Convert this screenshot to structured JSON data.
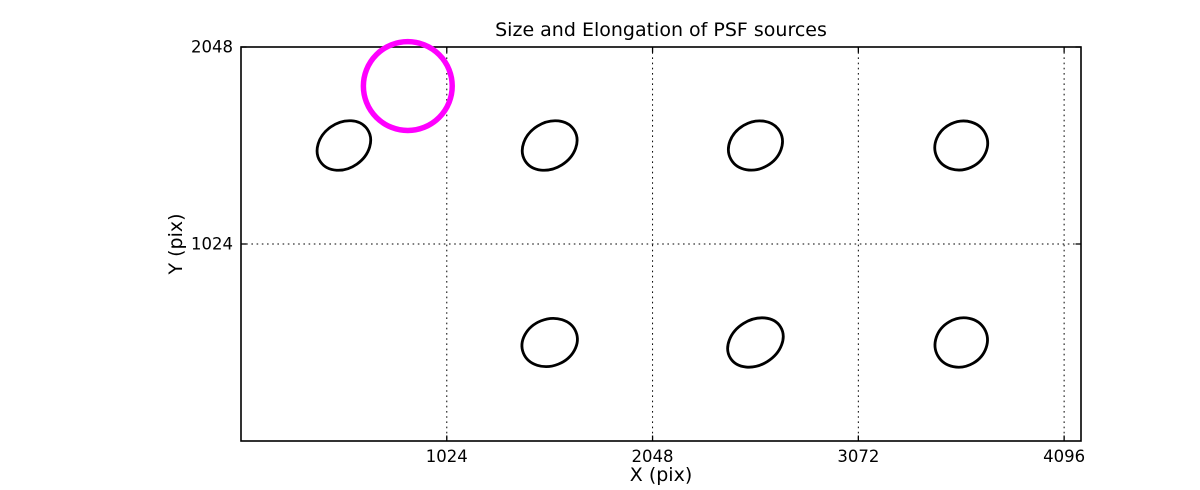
{
  "figure": {
    "title": "Size and Elongation of PSF sources",
    "background_color": "#ffffff",
    "foreground_color": "#000000"
  },
  "chart_data": {
    "type": "scatter",
    "title": "Size and Elongation of PSF sources",
    "xlabel": "X (pix)",
    "ylabel": "Y (pix)",
    "xlim": [
      0,
      4180
    ],
    "ylim": [
      0,
      2048
    ],
    "xticks": [
      1024,
      2048,
      3072,
      4096
    ],
    "yticks": [
      1024,
      2048
    ],
    "grid": {
      "enabled": true,
      "style": "dotted",
      "color": "#000000"
    },
    "legend_position": "none",
    "marker_description": "PSF sources drawn as tilted ellipses (size = PSF size, tilt = elongation); one highlighted source drawn as a thick magenta circle",
    "ellipse_color": "#000000",
    "psf_ellipses": [
      {
        "x": 512,
        "y": 1536,
        "semi_major": 142,
        "semi_minor": 113,
        "angle_deg": 35
      },
      {
        "x": 1536,
        "y": 1536,
        "semi_major": 144,
        "semi_minor": 114,
        "angle_deg": 32
      },
      {
        "x": 2560,
        "y": 1536,
        "semi_major": 140,
        "semi_minor": 116,
        "angle_deg": 30
      },
      {
        "x": 3584,
        "y": 1536,
        "semi_major": 134,
        "semi_minor": 119,
        "angle_deg": 25
      },
      {
        "x": 1536,
        "y": 512,
        "semi_major": 141,
        "semi_minor": 116,
        "angle_deg": 22
      },
      {
        "x": 2560,
        "y": 512,
        "semi_major": 147,
        "semi_minor": 112,
        "angle_deg": 32
      },
      {
        "x": 3584,
        "y": 512,
        "semi_major": 134,
        "semi_minor": 119,
        "angle_deg": 30
      }
    ],
    "highlight_circle": {
      "x": 830,
      "y": 1845,
      "radius": 221,
      "color": "#ff00ff"
    }
  }
}
